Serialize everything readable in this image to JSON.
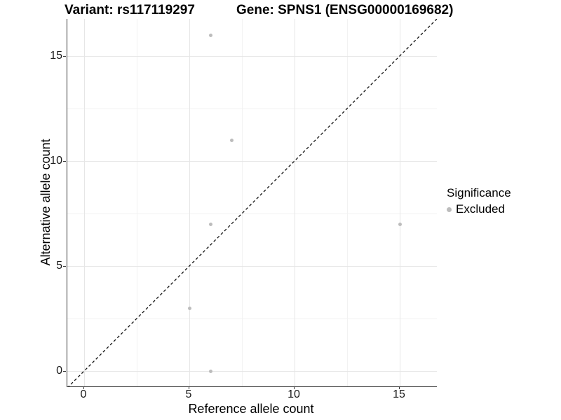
{
  "colors": {
    "background": "#ffffff",
    "grid_major": "#e6e6e6",
    "grid_minor": "#f2f2f2",
    "axis_line": "#333333",
    "title_text": "#000000",
    "tick_text": "#1a1a1a",
    "point": "#bcbcbc",
    "identity_line": "#111111"
  },
  "chart_data": {
    "type": "scatter",
    "title_left": "Variant: rs117119297",
    "title_right": "Gene: SPNS1 (ENSG00000169682)",
    "xlabel": "Reference allele count",
    "ylabel": "Alternative allele count",
    "x_breaks": [
      0,
      5,
      10,
      15
    ],
    "y_breaks": [
      0,
      5,
      10,
      15
    ],
    "x_minor_breaks": [
      2.5,
      7.5,
      12.5
    ],
    "y_minor_breaks": [
      2.5,
      7.5,
      12.5
    ],
    "xlim": [
      -0.8,
      16.8
    ],
    "ylim": [
      -0.8,
      16.8
    ],
    "grid": true,
    "series": [
      {
        "name": "Excluded",
        "color": "#bcbcbc",
        "points": [
          [
            6,
            16
          ],
          [
            7,
            11
          ],
          [
            6,
            7
          ],
          [
            15,
            7
          ],
          [
            5,
            3
          ],
          [
            6,
            0
          ]
        ]
      }
    ],
    "identity_line": {
      "slope": 1,
      "intercept": 0,
      "style": "dashed",
      "color": "#111111"
    },
    "legend": {
      "position": "right",
      "title": "Significance",
      "entries": [
        {
          "label": "Excluded",
          "color": "#bcbcbc"
        }
      ]
    }
  }
}
